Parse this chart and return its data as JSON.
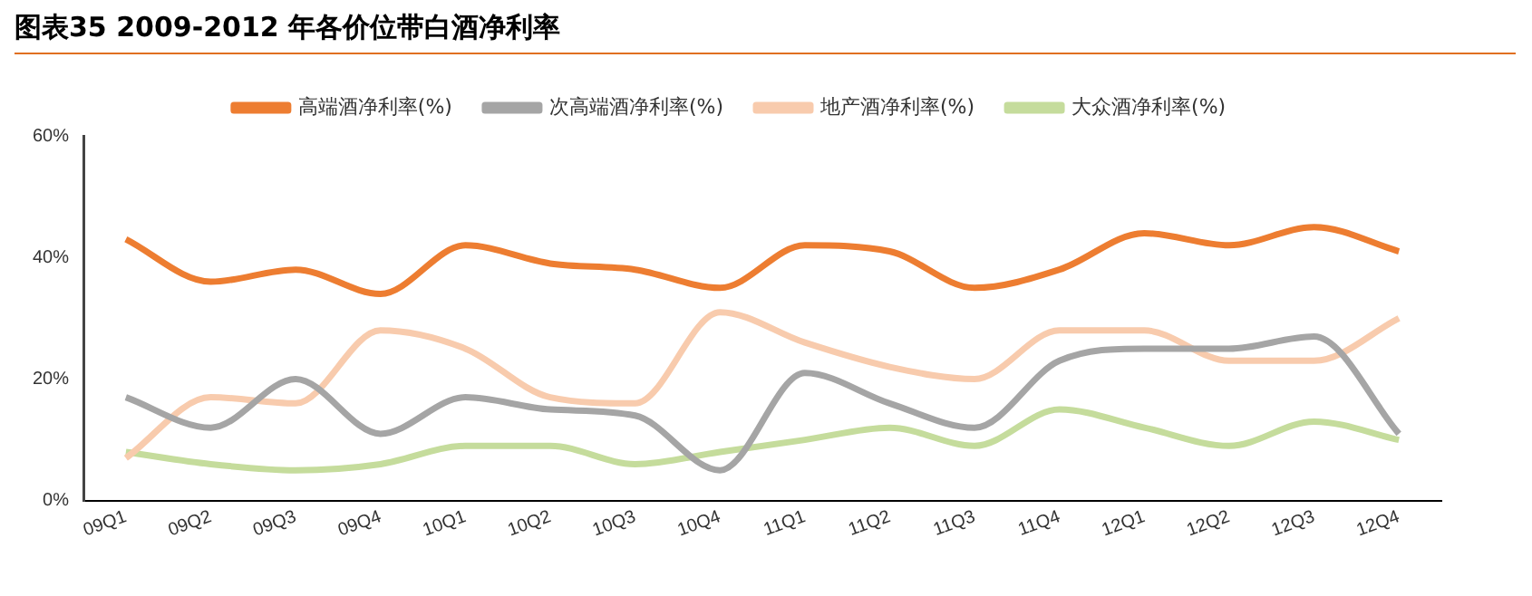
{
  "chart_data": {
    "type": "line",
    "title": "图表35  2009-2012 年各价位带白酒净利率",
    "categories": [
      "09Q1",
      "09Q2",
      "09Q3",
      "09Q4",
      "10Q1",
      "10Q2",
      "10Q3",
      "10Q4",
      "11Q1",
      "11Q2",
      "11Q3",
      "11Q4",
      "12Q1",
      "12Q2",
      "12Q3",
      "12Q4"
    ],
    "series": [
      {
        "name": "高端酒净利率(%)",
        "color": "#ed7d31",
        "values": [
          43,
          36,
          38,
          34,
          42,
          39,
          38,
          35,
          42,
          41,
          35,
          38,
          44,
          42,
          45,
          41
        ]
      },
      {
        "name": "次高端酒净利率(%)",
        "color": "#a5a5a5",
        "values": [
          17,
          12,
          20,
          11,
          17,
          15,
          14,
          5,
          21,
          16,
          12,
          23,
          25,
          25,
          27,
          11
        ]
      },
      {
        "name": "地产酒净利率(%)",
        "color": "#f8cbad",
        "values": [
          7,
          17,
          16,
          28,
          25,
          17,
          16,
          31,
          26,
          22,
          20,
          28,
          28,
          23,
          23,
          30
        ]
      },
      {
        "name": "大众酒净利率(%)",
        "color": "#c5dc9c",
        "values": [
          8,
          6,
          5,
          6,
          9,
          9,
          6,
          8,
          10,
          12,
          9,
          15,
          12,
          9,
          13,
          10
        ]
      }
    ],
    "ylim": [
      0,
      60
    ],
    "yticks": [
      {
        "value": 0,
        "label": "0%"
      },
      {
        "value": 20,
        "label": "20%"
      },
      {
        "value": 40,
        "label": "40%"
      },
      {
        "value": 60,
        "label": "60%"
      }
    ],
    "grid": false,
    "legend": "top",
    "marker": "none",
    "line_style": "solid"
  }
}
